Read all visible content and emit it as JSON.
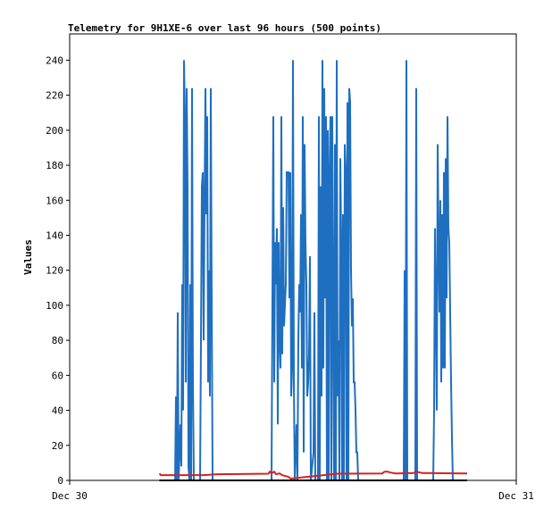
{
  "chart_data": {
    "type": "line",
    "title": "Telemetry for 9H1XE-6 over last 96 hours (500 points)",
    "xlabel": "",
    "ylabel": "Values",
    "x_ticks": [
      "Dec 30",
      "Dec 31"
    ],
    "xlim": [
      0,
      1
    ],
    "ylim": [
      0,
      255
    ],
    "y_ticks": [
      0,
      20,
      40,
      60,
      80,
      100,
      120,
      140,
      160,
      180,
      200,
      220,
      240
    ],
    "grid": false,
    "legend": "none",
    "series": [
      {
        "color": "#1f6fc0",
        "points": [
          [
            0.236,
            0
          ],
          [
            0.238,
            48
          ],
          [
            0.24,
            0
          ],
          [
            0.242,
            96
          ],
          [
            0.244,
            0
          ],
          [
            0.248,
            32
          ],
          [
            0.25,
            8
          ],
          [
            0.252,
            112
          ],
          [
            0.254,
            40
          ],
          [
            0.256,
            240
          ],
          [
            0.258,
            208
          ],
          [
            0.26,
            56
          ],
          [
            0.262,
            224
          ],
          [
            0.264,
            168
          ],
          [
            0.266,
            8
          ],
          [
            0.268,
            0
          ],
          [
            0.27,
            112
          ],
          [
            0.272,
            0
          ],
          [
            0.274,
            224
          ],
          [
            0.276,
            56
          ],
          [
            0.278,
            0
          ],
          [
            0.292,
            0
          ],
          [
            0.294,
            80
          ],
          [
            0.296,
            168
          ],
          [
            0.298,
            176
          ],
          [
            0.3,
            80
          ],
          [
            0.302,
            160
          ],
          [
            0.304,
            224
          ],
          [
            0.306,
            152
          ],
          [
            0.308,
            208
          ],
          [
            0.31,
            56
          ],
          [
            0.312,
            120
          ],
          [
            0.314,
            48
          ],
          [
            0.316,
            224
          ],
          [
            0.318,
            104
          ],
          [
            0.32,
            0
          ],
          [
            0.452,
            0
          ],
          [
            0.454,
            104
          ],
          [
            0.456,
            208
          ],
          [
            0.458,
            56
          ],
          [
            0.46,
            136
          ],
          [
            0.462,
            112
          ],
          [
            0.464,
            144
          ],
          [
            0.466,
            32
          ],
          [
            0.468,
            136
          ],
          [
            0.47,
            80
          ],
          [
            0.472,
            64
          ],
          [
            0.474,
            208
          ],
          [
            0.476,
            72
          ],
          [
            0.478,
            156
          ],
          [
            0.48,
            88
          ],
          [
            0.484,
            112
          ],
          [
            0.486,
            176
          ],
          [
            0.488,
            176
          ],
          [
            0.49,
            176
          ],
          [
            0.492,
            104
          ],
          [
            0.494,
            176
          ],
          [
            0.496,
            48
          ],
          [
            0.498,
            64
          ],
          [
            0.5,
            240
          ],
          [
            0.502,
            56
          ],
          [
            0.504,
            0
          ],
          [
            0.508,
            32
          ],
          [
            0.51,
            0
          ],
          [
            0.512,
            80
          ],
          [
            0.514,
            112
          ],
          [
            0.516,
            96
          ],
          [
            0.518,
            152
          ],
          [
            0.52,
            64
          ],
          [
            0.522,
            208
          ],
          [
            0.524,
            16
          ],
          [
            0.526,
            192
          ],
          [
            0.528,
            136
          ],
          [
            0.53,
            112
          ],
          [
            0.532,
            48
          ],
          [
            0.534,
            56
          ],
          [
            0.536,
            72
          ],
          [
            0.538,
            128
          ],
          [
            0.54,
            0
          ],
          [
            0.546,
            16
          ],
          [
            0.548,
            96
          ],
          [
            0.55,
            0
          ],
          [
            0.556,
            0
          ],
          [
            0.558,
            208
          ],
          [
            0.56,
            0
          ],
          [
            0.562,
            168
          ],
          [
            0.564,
            48
          ],
          [
            0.566,
            240
          ],
          [
            0.568,
            64
          ],
          [
            0.57,
            224
          ],
          [
            0.572,
            104
          ],
          [
            0.574,
            208
          ],
          [
            0.576,
            0
          ],
          [
            0.578,
            200
          ],
          [
            0.58,
            0
          ],
          [
            0.582,
            176
          ],
          [
            0.584,
            208
          ],
          [
            0.586,
            0
          ],
          [
            0.588,
            208
          ],
          [
            0.59,
            96
          ],
          [
            0.592,
            0
          ],
          [
            0.594,
            192
          ],
          [
            0.596,
            0
          ],
          [
            0.598,
            240
          ],
          [
            0.6,
            48
          ],
          [
            0.602,
            80
          ],
          [
            0.604,
            0
          ],
          [
            0.606,
            184
          ],
          [
            0.608,
            136
          ],
          [
            0.61,
            0
          ],
          [
            0.612,
            152
          ],
          [
            0.614,
            0
          ],
          [
            0.616,
            192
          ],
          [
            0.618,
            176
          ],
          [
            0.62,
            0
          ],
          [
            0.622,
            216
          ],
          [
            0.624,
            0
          ],
          [
            0.626,
            224
          ],
          [
            0.628,
            216
          ],
          [
            0.63,
            120
          ],
          [
            0.632,
            88
          ],
          [
            0.634,
            104
          ],
          [
            0.636,
            56
          ],
          [
            0.638,
            56
          ],
          [
            0.64,
            40
          ],
          [
            0.642,
            16
          ],
          [
            0.644,
            16
          ],
          [
            0.646,
            0
          ],
          [
            0.748,
            0
          ],
          [
            0.75,
            120
          ],
          [
            0.752,
            0
          ],
          [
            0.754,
            240
          ],
          [
            0.756,
            0
          ],
          [
            0.774,
            0
          ],
          [
            0.776,
            224
          ],
          [
            0.778,
            0
          ],
          [
            0.814,
            0
          ],
          [
            0.816,
            40
          ],
          [
            0.818,
            144
          ],
          [
            0.82,
            96
          ],
          [
            0.822,
            40
          ],
          [
            0.824,
            192
          ],
          [
            0.826,
            136
          ],
          [
            0.828,
            96
          ],
          [
            0.83,
            160
          ],
          [
            0.832,
            56
          ],
          [
            0.834,
            152
          ],
          [
            0.836,
            64
          ],
          [
            0.838,
            176
          ],
          [
            0.84,
            64
          ],
          [
            0.842,
            184
          ],
          [
            0.844,
            104
          ],
          [
            0.846,
            208
          ],
          [
            0.848,
            144
          ],
          [
            0.85,
            136
          ],
          [
            0.852,
            96
          ],
          [
            0.854,
            56
          ],
          [
            0.856,
            24
          ],
          [
            0.858,
            0
          ]
        ]
      },
      {
        "color": "#d62020",
        "points": [
          [
            0.201,
            4
          ],
          [
            0.204,
            3
          ],
          [
            0.3,
            3
          ],
          [
            0.33,
            3.5
          ],
          [
            0.38,
            3.6
          ],
          [
            0.445,
            3.8
          ],
          [
            0.448,
            5
          ],
          [
            0.452,
            4
          ],
          [
            0.458,
            5
          ],
          [
            0.462,
            3.5
          ],
          [
            0.47,
            4
          ],
          [
            0.476,
            3
          ],
          [
            0.49,
            2
          ],
          [
            0.495,
            1
          ],
          [
            0.6,
            3.8
          ],
          [
            0.7,
            4
          ],
          [
            0.705,
            5
          ],
          [
            0.712,
            5
          ],
          [
            0.718,
            4.5
          ],
          [
            0.73,
            4
          ],
          [
            0.77,
            4.2
          ],
          [
            0.775,
            5
          ],
          [
            0.79,
            4.2
          ],
          [
            0.89,
            4
          ]
        ]
      },
      {
        "color": "#000000",
        "points": [
          [
            0.201,
            0
          ],
          [
            0.89,
            0
          ]
        ]
      }
    ]
  }
}
